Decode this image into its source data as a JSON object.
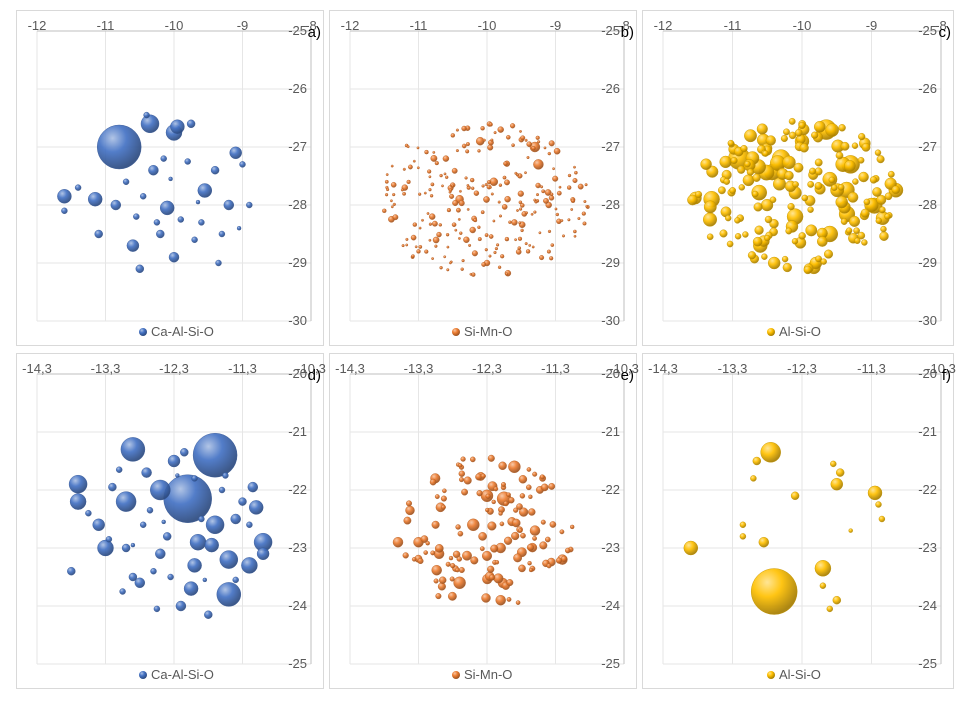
{
  "colors": {
    "blue": "#4472c4",
    "orange": "#ed7d31",
    "gold": "#ffc000",
    "grid": "#e6e6e6",
    "axis": "#bfbfbf",
    "text": "#595959"
  },
  "chart_data": [
    {
      "id": "a",
      "panel_label": "a)",
      "type": "scatter",
      "style": "bubble",
      "series_name": "Ca-Al-Si-O",
      "color": "#4472c4",
      "xlim": [
        -12,
        -8
      ],
      "ylim": [
        -30,
        -25
      ],
      "xticks": [
        -12,
        -11,
        -10,
        -9,
        -8
      ],
      "xtick_labels": [
        "-12",
        "-11",
        "-10",
        "-9",
        "-8"
      ],
      "yticks": [
        -25,
        -26,
        -27,
        -28,
        -29,
        -30
      ],
      "ytick_labels": [
        "-25",
        "-26",
        "-27",
        "-28",
        "-29",
        "-30"
      ],
      "xaxis_at_y": -25,
      "yaxis_at_x": -8,
      "legend_position": "bottom",
      "points": [
        {
          "x": -10.8,
          "y": -27.0,
          "r": 22
        },
        {
          "x": -10.35,
          "y": -26.6,
          "r": 9
        },
        {
          "x": -10.0,
          "y": -26.75,
          "r": 8
        },
        {
          "x": -9.95,
          "y": -26.65,
          "r": 7
        },
        {
          "x": -9.75,
          "y": -26.6,
          "r": 4
        },
        {
          "x": -9.1,
          "y": -27.1,
          "r": 6
        },
        {
          "x": -11.6,
          "y": -27.85,
          "r": 7
        },
        {
          "x": -11.15,
          "y": -27.9,
          "r": 7
        },
        {
          "x": -9.55,
          "y": -27.75,
          "r": 7
        },
        {
          "x": -10.6,
          "y": -28.7,
          "r": 6
        },
        {
          "x": -10.1,
          "y": -28.05,
          "r": 7
        },
        {
          "x": -9.2,
          "y": -28.0,
          "r": 5
        },
        {
          "x": -10.3,
          "y": -27.4,
          "r": 5
        },
        {
          "x": -10.85,
          "y": -28.0,
          "r": 5
        },
        {
          "x": -11.1,
          "y": -28.5,
          "r": 4
        },
        {
          "x": -10.0,
          "y": -28.9,
          "r": 5
        },
        {
          "x": -10.5,
          "y": -29.1,
          "r": 4
        },
        {
          "x": -9.4,
          "y": -27.4,
          "r": 4
        },
        {
          "x": -10.2,
          "y": -28.5,
          "r": 4
        },
        {
          "x": -9.9,
          "y": -28.25,
          "r": 3
        },
        {
          "x": -9.7,
          "y": -28.6,
          "r": 3
        },
        {
          "x": -10.45,
          "y": -27.85,
          "r": 3
        },
        {
          "x": -9.8,
          "y": -27.25,
          "r": 3
        },
        {
          "x": -10.15,
          "y": -27.2,
          "r": 3
        },
        {
          "x": -9.6,
          "y": -28.3,
          "r": 3
        },
        {
          "x": -9.3,
          "y": -28.5,
          "r": 3
        },
        {
          "x": -10.7,
          "y": -27.6,
          "r": 3
        },
        {
          "x": -11.4,
          "y": -27.7,
          "r": 3
        },
        {
          "x": -9.0,
          "y": -27.3,
          "r": 3
        },
        {
          "x": -10.25,
          "y": -28.3,
          "r": 3
        },
        {
          "x": -9.35,
          "y": -29.0,
          "r": 3
        },
        {
          "x": -10.55,
          "y": -28.2,
          "r": 3
        },
        {
          "x": -8.9,
          "y": -28.0,
          "r": 3
        },
        {
          "x": -9.65,
          "y": -27.95,
          "r": 2
        },
        {
          "x": -10.05,
          "y": -27.55,
          "r": 2
        },
        {
          "x": -10.4,
          "y": -26.45,
          "r": 3
        },
        {
          "x": -9.05,
          "y": -28.4,
          "r": 2
        },
        {
          "x": -11.6,
          "y": -28.1,
          "r": 3
        }
      ]
    },
    {
      "id": "b",
      "panel_label": "b)",
      "type": "scatter",
      "style": "bubble",
      "series_name": "Si-Mn-O",
      "color": "#ed7d31",
      "xlim": [
        -12,
        -8
      ],
      "ylim": [
        -30,
        -25
      ],
      "xticks": [
        -12,
        -11,
        -10,
        -9,
        -8
      ],
      "xtick_labels": [
        "-12",
        "-11",
        "-10",
        "-9",
        "-8"
      ],
      "yticks": [
        -25,
        -26,
        -27,
        -28,
        -29,
        -30
      ],
      "ytick_labels": [
        "-25",
        "-26",
        "-27",
        "-28",
        "-29",
        "-30"
      ],
      "xaxis_at_y": -25,
      "yaxis_at_x": -8,
      "legend_position": "bottom",
      "points": [
        {
          "x": -9.3,
          "y": -27.0,
          "r": 5
        },
        {
          "x": -9.25,
          "y": -27.3,
          "r": 5
        },
        {
          "x": -10.1,
          "y": -26.9,
          "r": 4
        },
        {
          "x": -9.9,
          "y": -27.6,
          "r": 4
        },
        {
          "x": -10.4,
          "y": -27.9,
          "r": 4
        },
        {
          "x": -10.8,
          "y": -28.2,
          "r": 3
        },
        {
          "x": -9.6,
          "y": -28.3,
          "r": 3
        },
        {
          "x": -10.0,
          "y": -29.0,
          "r": 3
        },
        {
          "x": -9.8,
          "y": -26.7,
          "r": 3
        },
        {
          "x": -11.2,
          "y": -27.7,
          "r": 3
        },
        {
          "x": -10.6,
          "y": -27.2,
          "r": 3
        },
        {
          "x": -9.1,
          "y": -28.0,
          "r": 3
        },
        {
          "x": -10.3,
          "y": -28.6,
          "r": 3
        },
        {
          "x": -11.0,
          "y": -28.8,
          "r": 2
        },
        {
          "x": -9.4,
          "y": -28.8,
          "r": 2
        },
        {
          "x": -10.5,
          "y": -26.8,
          "r": 2
        },
        {
          "x": -8.8,
          "y": -27.7,
          "r": 2
        },
        {
          "x": -11.5,
          "y": -28.1,
          "r": 2
        },
        {
          "x": -10.2,
          "y": -29.2,
          "r": 2
        },
        {
          "x": -9.7,
          "y": -27.9,
          "r": 3
        }
      ],
      "generated": {
        "count": 230,
        "seed": 7,
        "cx": -10.05,
        "cy": -27.9,
        "rx": 1.55,
        "ry": 1.35,
        "rmin": 1.2,
        "rmax": 3.2
      }
    },
    {
      "id": "c",
      "panel_label": "c)",
      "type": "scatter",
      "style": "bubble",
      "series_name": "Al-Si-O",
      "color": "#ffc000",
      "xlim": [
        -12,
        -8
      ],
      "ylim": [
        -30,
        -25
      ],
      "xticks": [
        -12,
        -11,
        -10,
        -9,
        -8
      ],
      "xtick_labels": [
        "-12",
        "-11",
        "-10",
        "-9",
        "-8"
      ],
      "yticks": [
        -25,
        -26,
        -27,
        -28,
        -29,
        -30
      ],
      "ytick_labels": [
        "-25",
        "-26",
        "-27",
        "-28",
        "-29",
        "-30"
      ],
      "xaxis_at_y": -25,
      "yaxis_at_x": -8,
      "legend_position": "bottom",
      "points": [
        {
          "x": -10.9,
          "y": -27.2,
          "r": 11
        },
        {
          "x": -9.65,
          "y": -26.7,
          "r": 10
        },
        {
          "x": -10.3,
          "y": -27.2,
          "r": 9
        },
        {
          "x": -9.3,
          "y": -27.3,
          "r": 9
        },
        {
          "x": -11.3,
          "y": -27.9,
          "r": 8
        },
        {
          "x": -10.1,
          "y": -28.2,
          "r": 8
        },
        {
          "x": -10.6,
          "y": -28.7,
          "r": 7
        },
        {
          "x": -9.6,
          "y": -28.5,
          "r": 8
        },
        {
          "x": -9.0,
          "y": -28.0,
          "r": 7
        },
        {
          "x": -10.0,
          "y": -26.9,
          "r": 7
        },
        {
          "x": -10.4,
          "y": -29.0,
          "r": 6
        },
        {
          "x": -9.8,
          "y": -29.0,
          "r": 6
        }
      ],
      "generated": {
        "count": 170,
        "seed": 19,
        "cx": -10.1,
        "cy": -27.85,
        "rx": 1.5,
        "ry": 1.35,
        "rmin": 3,
        "rmax": 8
      }
    },
    {
      "id": "d",
      "panel_label": "d)",
      "type": "scatter",
      "style": "bubble",
      "series_name": "Ca-Al-Si-O",
      "color": "#4472c4",
      "xlim": [
        -14.3,
        -10.3
      ],
      "ylim": [
        -25,
        -20
      ],
      "xticks": [
        -14.3,
        -13.3,
        -12.3,
        -11.3,
        -10.3
      ],
      "xtick_labels": [
        "-14,3",
        "-13,3",
        "-12,3",
        "-11,3",
        "-10,3"
      ],
      "yticks": [
        -20,
        -21,
        -22,
        -23,
        -24,
        -25
      ],
      "ytick_labels": [
        "-20",
        "-21",
        "-22",
        "-23",
        "-24",
        "-25"
      ],
      "xaxis_at_y": -20,
      "yaxis_at_x": -10.3,
      "legend_position": "bottom",
      "points": [
        {
          "x": -12.1,
          "y": -22.15,
          "r": 24
        },
        {
          "x": -11.7,
          "y": -21.4,
          "r": 22
        },
        {
          "x": -11.5,
          "y": -23.8,
          "r": 12
        },
        {
          "x": -12.9,
          "y": -21.3,
          "r": 12
        },
        {
          "x": -13.0,
          "y": -22.2,
          "r": 10
        },
        {
          "x": -12.5,
          "y": -22.0,
          "r": 10
        },
        {
          "x": -11.5,
          "y": -23.2,
          "r": 9
        },
        {
          "x": -13.7,
          "y": -21.9,
          "r": 9
        },
        {
          "x": -11.7,
          "y": -22.6,
          "r": 9
        },
        {
          "x": -13.3,
          "y": -23.0,
          "r": 8
        },
        {
          "x": -11.0,
          "y": -22.9,
          "r": 9
        },
        {
          "x": -11.2,
          "y": -23.3,
          "r": 8
        },
        {
          "x": -11.1,
          "y": -22.3,
          "r": 7
        },
        {
          "x": -13.7,
          "y": -22.2,
          "r": 8
        },
        {
          "x": -12.0,
          "y": -23.3,
          "r": 7
        },
        {
          "x": -11.95,
          "y": -22.9,
          "r": 8
        },
        {
          "x": -11.75,
          "y": -22.95,
          "r": 7
        },
        {
          "x": -12.05,
          "y": -23.7,
          "r": 7
        },
        {
          "x": -13.4,
          "y": -22.6,
          "r": 6
        },
        {
          "x": -12.3,
          "y": -21.5,
          "r": 6
        },
        {
          "x": -12.8,
          "y": -23.6,
          "r": 5
        },
        {
          "x": -12.5,
          "y": -23.1,
          "r": 5
        },
        {
          "x": -11.0,
          "y": -23.1,
          "r": 6
        },
        {
          "x": -13.8,
          "y": -23.4,
          "r": 4
        },
        {
          "x": -11.4,
          "y": -22.5,
          "r": 5
        },
        {
          "x": -12.2,
          "y": -24.0,
          "r": 5
        },
        {
          "x": -12.7,
          "y": -21.7,
          "r": 5
        },
        {
          "x": -12.4,
          "y": -22.8,
          "r": 4
        },
        {
          "x": -13.0,
          "y": -23.0,
          "r": 4
        },
        {
          "x": -11.15,
          "y": -21.95,
          "r": 5
        },
        {
          "x": -12.9,
          "y": -23.5,
          "r": 4
        },
        {
          "x": -11.8,
          "y": -24.15,
          "r": 4
        },
        {
          "x": -12.6,
          "y": -23.4,
          "r": 3
        },
        {
          "x": -13.2,
          "y": -21.95,
          "r": 4
        },
        {
          "x": -11.3,
          "y": -22.2,
          "r": 4
        },
        {
          "x": -12.15,
          "y": -21.35,
          "r": 4
        },
        {
          "x": -12.75,
          "y": -22.6,
          "r": 3
        },
        {
          "x": -13.55,
          "y": -22.4,
          "r": 3
        },
        {
          "x": -11.6,
          "y": -22.0,
          "r": 3
        },
        {
          "x": -12.35,
          "y": -23.5,
          "r": 3
        },
        {
          "x": -11.9,
          "y": -22.5,
          "r": 3
        },
        {
          "x": -12.0,
          "y": -21.8,
          "r": 3
        },
        {
          "x": -13.05,
          "y": -23.75,
          "r": 3
        },
        {
          "x": -12.55,
          "y": -24.05,
          "r": 3
        },
        {
          "x": -11.4,
          "y": -23.55,
          "r": 3
        },
        {
          "x": -13.1,
          "y": -21.65,
          "r": 3
        },
        {
          "x": -11.2,
          "y": -22.6,
          "r": 3
        },
        {
          "x": -12.65,
          "y": -22.35,
          "r": 3
        },
        {
          "x": -11.55,
          "y": -21.75,
          "r": 3
        },
        {
          "x": -13.25,
          "y": -22.85,
          "r": 3
        },
        {
          "x": -12.45,
          "y": -22.55,
          "r": 2
        },
        {
          "x": -11.85,
          "y": -23.55,
          "r": 2
        },
        {
          "x": -12.9,
          "y": -22.95,
          "r": 2
        },
        {
          "x": -12.25,
          "y": -21.75,
          "r": 2
        }
      ]
    },
    {
      "id": "e",
      "panel_label": "e)",
      "type": "scatter",
      "style": "bubble",
      "series_name": "Si-Mn-O",
      "color": "#ed7d31",
      "xlim": [
        -14.3,
        -10.3
      ],
      "ylim": [
        -25,
        -20
      ],
      "xticks": [
        -14.3,
        -13.3,
        -12.3,
        -11.3,
        -10.3
      ],
      "xtick_labels": [
        "-14,3",
        "-13,3",
        "-12,3",
        "-11,3",
        "-10,3"
      ],
      "yticks": [
        -20,
        -21,
        -22,
        -23,
        -24,
        -25
      ],
      "ytick_labels": [
        "-20",
        "-21",
        "-22",
        "-23",
        "-24",
        "-25"
      ],
      "xaxis_at_y": -20,
      "yaxis_at_x": -10.3,
      "legend_position": "bottom",
      "points": [
        {
          "x": -12.05,
          "y": -22.15,
          "r": 7
        },
        {
          "x": -12.3,
          "y": -22.1,
          "r": 6
        },
        {
          "x": -11.9,
          "y": -21.6,
          "r": 6
        },
        {
          "x": -12.5,
          "y": -22.6,
          "r": 6
        },
        {
          "x": -12.7,
          "y": -23.6,
          "r": 6
        },
        {
          "x": -13.3,
          "y": -22.9,
          "r": 5
        },
        {
          "x": -11.2,
          "y": -23.2,
          "r": 5
        },
        {
          "x": -12.1,
          "y": -23.0,
          "r": 5
        },
        {
          "x": -13.0,
          "y": -23.1,
          "r": 5
        },
        {
          "x": -11.6,
          "y": -22.7,
          "r": 5
        },
        {
          "x": -13.6,
          "y": -22.9,
          "r": 5
        },
        {
          "x": -12.1,
          "y": -23.9,
          "r": 5
        }
      ],
      "generated": {
        "count": 130,
        "seed": 31,
        "cx": -12.3,
        "cy": -22.75,
        "rx": 1.25,
        "ry": 1.35,
        "rmin": 2,
        "rmax": 5
      }
    },
    {
      "id": "f",
      "panel_label": "f)",
      "type": "scatter",
      "style": "bubble",
      "series_name": "Al-Si-O",
      "color": "#ffc000",
      "xlim": [
        -14.3,
        -10.3
      ],
      "ylim": [
        -25,
        -20
      ],
      "xticks": [
        -14.3,
        -13.3,
        -12.3,
        -11.3,
        -10.3
      ],
      "xtick_labels": [
        "-14,3",
        "-13,3",
        "-12,3",
        "-11,3",
        "-10,3"
      ],
      "yticks": [
        -20,
        -21,
        -22,
        -23,
        -24,
        -25
      ],
      "ytick_labels": [
        "-20",
        "-21",
        "-22",
        "-23",
        "-24",
        "-25"
      ],
      "xaxis_at_y": -20,
      "yaxis_at_x": -10.3,
      "legend_position": "bottom",
      "points": [
        {
          "x": -12.7,
          "y": -23.75,
          "r": 23
        },
        {
          "x": -12.75,
          "y": -21.35,
          "r": 10
        },
        {
          "x": -12.0,
          "y": -23.35,
          "r": 8
        },
        {
          "x": -13.9,
          "y": -23.0,
          "r": 7
        },
        {
          "x": -11.25,
          "y": -22.05,
          "r": 7
        },
        {
          "x": -12.85,
          "y": -22.9,
          "r": 5
        },
        {
          "x": -11.8,
          "y": -21.9,
          "r": 6
        },
        {
          "x": -12.4,
          "y": -22.1,
          "r": 4
        },
        {
          "x": -12.95,
          "y": -21.5,
          "r": 4
        },
        {
          "x": -11.75,
          "y": -21.7,
          "r": 4
        },
        {
          "x": -11.8,
          "y": -23.9,
          "r": 4
        },
        {
          "x": -13.0,
          "y": -21.8,
          "r": 3
        },
        {
          "x": -12.0,
          "y": -23.65,
          "r": 3
        },
        {
          "x": -11.9,
          "y": -24.05,
          "r": 3
        },
        {
          "x": -11.85,
          "y": -21.55,
          "r": 3
        },
        {
          "x": -13.15,
          "y": -22.6,
          "r": 3
        },
        {
          "x": -11.15,
          "y": -22.5,
          "r": 3
        },
        {
          "x": -13.15,
          "y": -22.8,
          "r": 3
        },
        {
          "x": -11.2,
          "y": -22.25,
          "r": 3
        },
        {
          "x": -11.6,
          "y": -22.7,
          "r": 2
        }
      ]
    }
  ]
}
